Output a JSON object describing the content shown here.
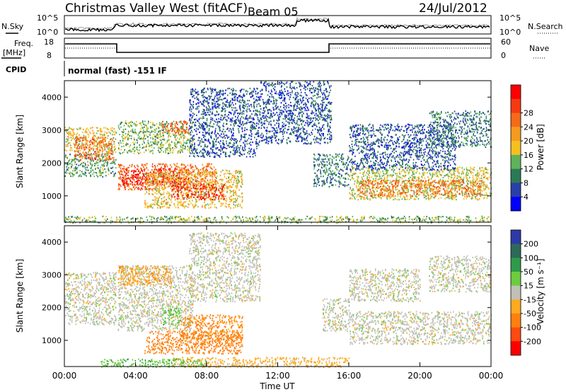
{
  "header": {
    "station_title": "Christmas Valley West (fitACF)",
    "beam_label": "Beam 05",
    "date": "24/Jul/2012"
  },
  "top_panels": {
    "nsky_label": "N.Sky",
    "nsky_ticks": [
      "10^5",
      "10^0"
    ],
    "nsearch_label": "N.Search",
    "nsearch_ticks": [
      "10^5",
      "10^0"
    ],
    "freq_label": "Freq.",
    "freq_unit": "[MHz]",
    "freq_ticks": [
      "18",
      "8"
    ],
    "nave_label": "Nave",
    "nave_ticks": [
      "60",
      "0"
    ],
    "cpid_label": "CPID",
    "cpid_value": "normal (fast) -151 IF"
  },
  "colors": {
    "power_scale": [
      "#0000ff",
      "#2a3fa8",
      "#2c7a55",
      "#5fb25a",
      "#f5c020",
      "#f59a20",
      "#f56a1a",
      "#f53a12",
      "#ff0000"
    ],
    "velocity_scale": [
      "#2d3aa5",
      "#2d6a5a",
      "#2f9a4a",
      "#6ccc3e",
      "#c0c0b8",
      "#ffaa20",
      "#ff8010",
      "#ff4a10",
      "#ff0000"
    ]
  },
  "chart_data": [
    {
      "type": "heatmap",
      "name": "power",
      "ylabel": "Slant Range [km]",
      "yticks": [
        "1000",
        "2000",
        "3000",
        "4000"
      ],
      "ylim": [
        200,
        4500
      ],
      "xlim": [
        0,
        24
      ],
      "colorbar_label": "Power [dB]",
      "colorbar_ticks": [
        "4",
        "8",
        "12",
        "16",
        "20",
        "24",
        "28"
      ],
      "clim": [
        0,
        30
      ],
      "bands": [
        {
          "t": [
            0.0,
            2.9
          ],
          "r": [
            2350,
            3100
          ],
          "v": 15
        },
        {
          "t": [
            0.0,
            2.9
          ],
          "r": [
            1600,
            2300
          ],
          "v": 10
        },
        {
          "t": [
            0.5,
            2.8
          ],
          "r": [
            2100,
            2800
          ],
          "v": 22
        },
        {
          "t": [
            3.0,
            8.5
          ],
          "r": [
            1200,
            2000
          ],
          "v": 22
        },
        {
          "t": [
            3.2,
            7.0
          ],
          "r": [
            1350,
            1850
          ],
          "v": 27
        },
        {
          "t": [
            3.0,
            7.2
          ],
          "r": [
            2300,
            3300
          ],
          "v": 12
        },
        {
          "t": [
            5.5,
            7.0
          ],
          "r": [
            2900,
            3300
          ],
          "v": 23
        },
        {
          "t": [
            4.5,
            10.0
          ],
          "r": [
            650,
            1800
          ],
          "v": 16
        },
        {
          "t": [
            6.0,
            9.0
          ],
          "r": [
            900,
            1400
          ],
          "v": 26
        },
        {
          "t": [
            7.0,
            11.0
          ],
          "r": [
            2200,
            4300
          ],
          "v": 6
        },
        {
          "t": [
            11.0,
            15.0
          ],
          "r": [
            2600,
            4500
          ],
          "v": 6
        },
        {
          "t": [
            14.0,
            16.0
          ],
          "r": [
            1300,
            2300
          ],
          "v": 8
        },
        {
          "t": [
            16.0,
            24.0
          ],
          "r": [
            900,
            1900
          ],
          "v": 14
        },
        {
          "t": [
            16.5,
            23.5
          ],
          "r": [
            1000,
            1500
          ],
          "v": 21
        },
        {
          "t": [
            16.0,
            22.0
          ],
          "r": [
            1800,
            3200
          ],
          "v": 6
        },
        {
          "t": [
            20.5,
            24.0
          ],
          "r": [
            2500,
            3600
          ],
          "v": 8
        },
        {
          "t": [
            0.0,
            24.0
          ],
          "r": [
            200,
            400
          ],
          "v": 12
        }
      ]
    },
    {
      "type": "heatmap",
      "name": "velocity",
      "ylabel": "Slant Range [km]",
      "yticks": [
        "1000",
        "2000",
        "3000",
        "4000"
      ],
      "ylim": [
        200,
        4500
      ],
      "xlim": [
        0,
        24
      ],
      "xlabel": "Time UT",
      "xticks": [
        "00:00",
        "04:00",
        "08:00",
        "12:00",
        "16:00",
        "20:00",
        "00:00"
      ],
      "colorbar_label": "Velocity [m s⁻¹]",
      "colorbar_ticks": [
        "200",
        "100",
        "50",
        "15",
        "-15",
        "-50",
        "-100",
        "-200"
      ],
      "clim": [
        -250,
        250
      ],
      "bands": [
        {
          "t": [
            0.0,
            2.9
          ],
          "r": [
            1500,
            3100
          ],
          "v": 0
        },
        {
          "t": [
            3.0,
            7.2
          ],
          "r": [
            1300,
            3300
          ],
          "v": 0
        },
        {
          "t": [
            3.0,
            6.0
          ],
          "r": [
            2700,
            3300
          ],
          "v": -40
        },
        {
          "t": [
            4.5,
            10.0
          ],
          "r": [
            600,
            1300
          ],
          "v": -70
        },
        {
          "t": [
            6.5,
            10.0
          ],
          "r": [
            900,
            1800
          ],
          "v": -60
        },
        {
          "t": [
            5.5,
            6.5
          ],
          "r": [
            1500,
            2000
          ],
          "v": 40
        },
        {
          "t": [
            7.0,
            11.0
          ],
          "r": [
            2200,
            4300
          ],
          "v": 0
        },
        {
          "t": [
            14.5,
            16.0
          ],
          "r": [
            1300,
            2300
          ],
          "v": 0
        },
        {
          "t": [
            16.0,
            24.0
          ],
          "r": [
            900,
            1900
          ],
          "v": 0
        },
        {
          "t": [
            16.0,
            20.0
          ],
          "r": [
            2200,
            3200
          ],
          "v": 0
        },
        {
          "t": [
            20.5,
            24.0
          ],
          "r": [
            2500,
            3600
          ],
          "v": 0
        },
        {
          "t": [
            6.0,
            16.0
          ],
          "r": [
            200,
            500
          ],
          "v": -30
        },
        {
          "t": [
            2.0,
            8.0
          ],
          "r": [
            200,
            450
          ],
          "v": 40
        }
      ]
    }
  ]
}
